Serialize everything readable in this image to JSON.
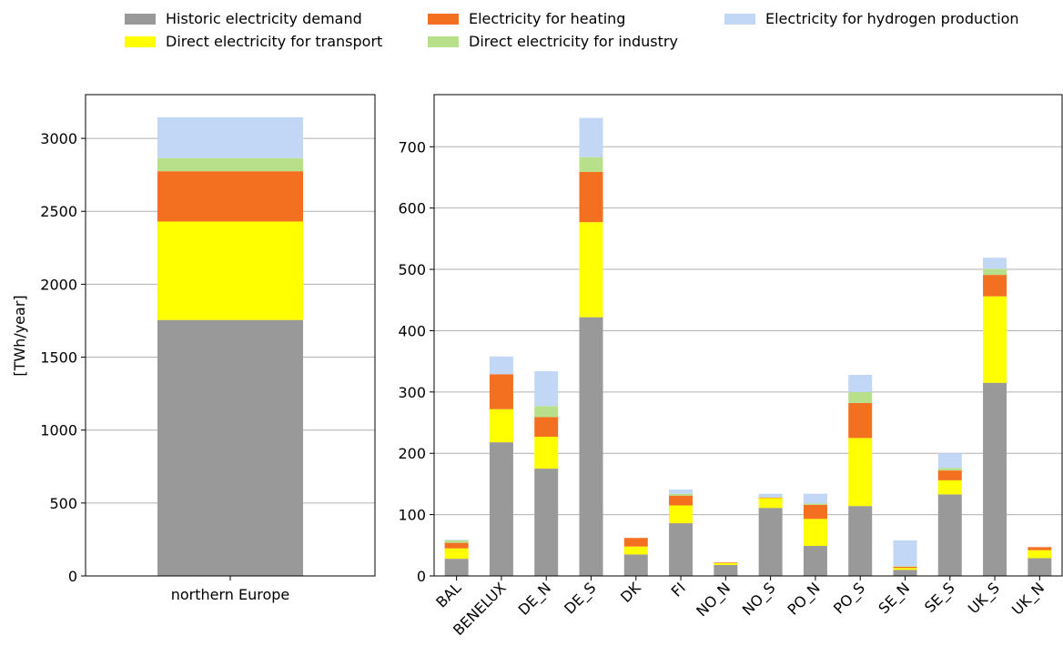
{
  "legend": {
    "placement": "top",
    "items": [
      {
        "label": "Historic electricity demand",
        "color": "#999999"
      },
      {
        "label": "Direct electricity for transport",
        "color": "#ffff00"
      },
      {
        "label": "Electricity for heating",
        "color": "#f37021"
      },
      {
        "label": "Direct electricity for industry",
        "color": "#b8e08a"
      },
      {
        "label": "Electricity for hydrogen production",
        "color": "#c2d6f5"
      }
    ]
  },
  "chart_data": [
    {
      "type": "bar",
      "stacked": true,
      "ylabel": "[TWh/year]",
      "ylim": [
        0,
        3300
      ],
      "yticks": [
        0,
        500,
        1000,
        1500,
        2000,
        2500,
        3000
      ],
      "grid": true,
      "categories": [
        "northern Europe"
      ],
      "series": [
        {
          "name": "Historic electricity demand",
          "color": "#999999",
          "values": [
            1755
          ]
        },
        {
          "name": "Direct electricity for transport",
          "color": "#ffff00",
          "values": [
            675
          ]
        },
        {
          "name": "Electricity for heating",
          "color": "#f37021",
          "values": [
            345
          ]
        },
        {
          "name": "Direct electricity for industry",
          "color": "#b8e08a",
          "values": [
            90
          ]
        },
        {
          "name": "Electricity for hydrogen production",
          "color": "#c2d6f5",
          "values": [
            280
          ]
        }
      ]
    },
    {
      "type": "bar",
      "stacked": true,
      "ylabel": "",
      "ylim": [
        0,
        785
      ],
      "yticks": [
        0,
        100,
        200,
        300,
        400,
        500,
        600,
        700
      ],
      "grid": true,
      "categories": [
        "BAL",
        "BENELUX",
        "DE_N",
        "DE_S",
        "DK",
        "FI",
        "NO_N",
        "NO_S",
        "PO_N",
        "PO_S",
        "SE_N",
        "SE_S",
        "UK_S",
        "UK_N"
      ],
      "series": [
        {
          "name": "Historic electricity demand",
          "color": "#999999",
          "values": [
            28,
            218,
            175,
            422,
            35,
            86,
            18,
            111,
            49,
            114,
            10,
            133,
            315,
            29
          ]
        },
        {
          "name": "Direct electricity for transport",
          "color": "#ffff00",
          "values": [
            17,
            54,
            52,
            155,
            13,
            29,
            3,
            16,
            44,
            111,
            3,
            23,
            141,
            13
          ]
        },
        {
          "name": "Electricity for heating",
          "color": "#f37021",
          "values": [
            9,
            57,
            32,
            82,
            14,
            16,
            1,
            1,
            23,
            57,
            2,
            16,
            35,
            5
          ]
        },
        {
          "name": "Direct electricity for industry",
          "color": "#b8e08a",
          "values": [
            4,
            0,
            18,
            24,
            0,
            3,
            0,
            0,
            2,
            18,
            1,
            4,
            10,
            0
          ]
        },
        {
          "name": "Electricity for hydrogen production",
          "color": "#c2d6f5",
          "values": [
            1,
            29,
            57,
            64,
            0,
            7,
            0,
            6,
            16,
            28,
            42,
            24,
            18,
            0
          ]
        }
      ]
    }
  ]
}
